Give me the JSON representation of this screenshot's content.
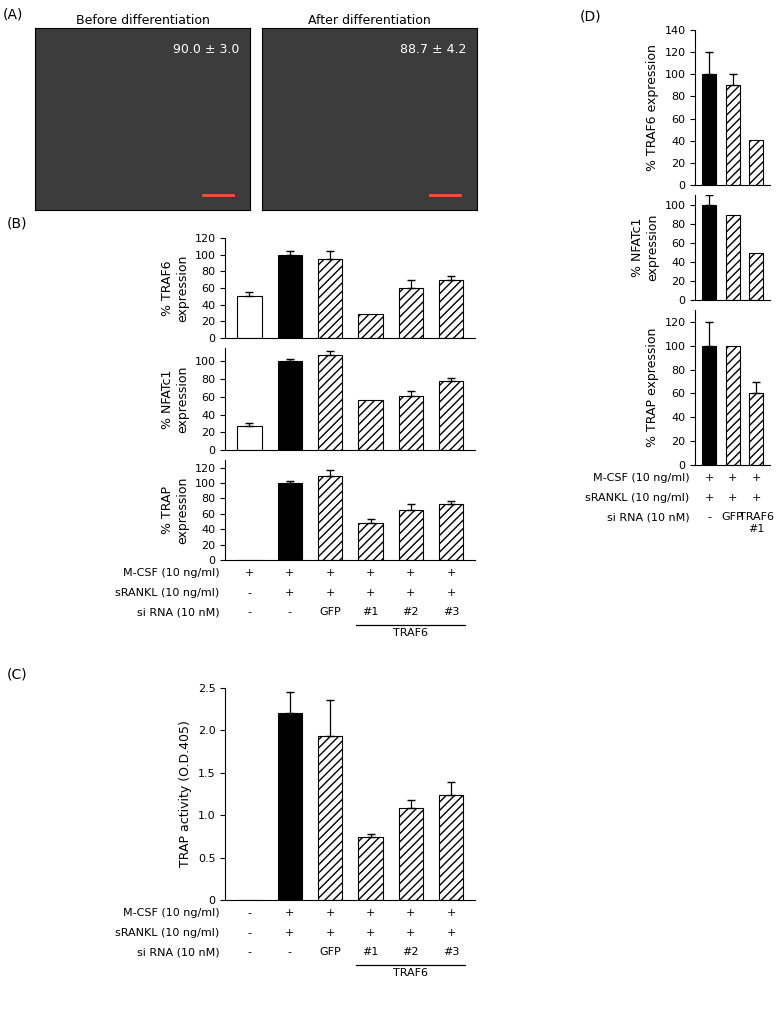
{
  "panel_A": {
    "label": "(A)",
    "images": [
      {
        "title": "Before differentiation",
        "annotation": "90.0 ± 3.0"
      },
      {
        "title": "After differentiation",
        "annotation": "88.7 ± 4.2"
      }
    ]
  },
  "chart_data": [
    {
      "panel": "(B)",
      "type": "bar",
      "y_label": "% TRAF6 expression",
      "categories": [
        null,
        null,
        null,
        null,
        null,
        null
      ],
      "values": [
        50,
        100,
        95,
        29,
        60,
        70
      ],
      "errors": [
        5,
        5,
        10,
        null,
        10,
        5
      ],
      "colors": [
        "#ffffff",
        "#000000",
        "#ffffff",
        "#ffffff",
        "#ffffff",
        "#ffffff"
      ],
      "ylim": [
        0,
        120
      ],
      "yticks": [
        0,
        20,
        40,
        60,
        80,
        100,
        120
      ],
      "tick_labels": "y"
    },
    {
      "type": "bar",
      "y_label": "% NFATc1 expression",
      "categories": [
        null,
        null,
        null,
        null,
        null,
        null
      ],
      "values": [
        27,
        100,
        107,
        56,
        61,
        78
      ],
      "errors": [
        4,
        3,
        5,
        null,
        5,
        3
      ],
      "colors": [
        "#ffffff",
        "#000000",
        "#ffffff",
        "#ffffff",
        "#ffffff",
        "#ffffff"
      ],
      "ylim": [
        0,
        115
      ],
      "yticks": [
        0,
        20,
        40,
        60,
        80,
        100
      ],
      "tick_labels": "y"
    },
    {
      "type": "bar",
      "y_label": "% TRAP expression",
      "categories": [
        null,
        null,
        null,
        null,
        null,
        null
      ],
      "values": [
        0,
        100,
        109,
        48,
        65,
        73
      ],
      "errors": [
        null,
        3,
        8,
        5,
        8,
        4
      ],
      "colors": [
        "#ffffff",
        "#000000",
        "#ffffff",
        "#ffffff",
        "#ffffff",
        "#ffffff"
      ],
      "ylim": [
        0,
        130
      ],
      "yticks": [
        0,
        20,
        40,
        60,
        80,
        100,
        120
      ],
      "tick_labels": "y",
      "condition_rows": [
        {
          "label": "M-CSF (10 ng/ml)",
          "values": [
            "+",
            "+",
            "+",
            "+",
            "+",
            "+"
          ]
        },
        {
          "label": "sRANKL (10 ng/ml)",
          "values": [
            "-",
            "+",
            "+",
            "+",
            "+",
            "+"
          ]
        },
        {
          "label": "si RNA (10 nM)",
          "values": [
            "-",
            "-",
            "GFP",
            "#1",
            "#2",
            "#3"
          ]
        }
      ],
      "group": {
        "label": "TRAF6",
        "members": [
          "#1",
          "#2",
          "#3"
        ]
      }
    },
    {
      "panel": "(C)",
      "type": "bar",
      "y_label": "TRAP activity (O.D.405)",
      "categories": [
        null,
        null,
        null,
        null,
        null,
        null
      ],
      "values": [
        0,
        2.2,
        1.93,
        0.74,
        1.08,
        1.24
      ],
      "errors": [
        null,
        0.25,
        0.43,
        0.04,
        0.1,
        0.15
      ],
      "colors": [
        "#ffffff",
        "#000000",
        "#ffffff",
        "#ffffff",
        "#ffffff",
        "#ffffff"
      ],
      "ylim": [
        0,
        2.5
      ],
      "yticks": [
        0,
        0.5,
        1.0,
        1.5,
        2.0,
        2.5
      ],
      "tick_labels": "y",
      "condition_rows": [
        {
          "label": "M-CSF (10 ng/ml)",
          "values": [
            "-",
            "+",
            "+",
            "+",
            "+",
            "+"
          ]
        },
        {
          "label": "sRANKL (10 ng/ml)",
          "values": [
            "-",
            "+",
            "+",
            "+",
            "+",
            "+"
          ]
        },
        {
          "label": "si RNA (10 nM)",
          "values": [
            "-",
            "-",
            "GFP",
            "#1",
            "#2",
            "#3"
          ]
        }
      ],
      "group": {
        "label": "TRAF6",
        "members": [
          "#1",
          "#2",
          "#3"
        ]
      }
    },
    {
      "panel": "(D)",
      "type": "bar",
      "y_label": "% TRAF6 expression",
      "categories": [
        null,
        null,
        null
      ],
      "values": [
        100,
        90,
        41
      ],
      "errors": [
        20,
        10,
        null
      ],
      "colors": [
        "#000000",
        "#ffffff",
        "#ffffff"
      ],
      "ylim": [
        0,
        140
      ],
      "yticks": [
        0,
        20,
        40,
        60,
        80,
        100,
        120,
        140
      ],
      "tick_labels": "y"
    },
    {
      "type": "bar",
      "y_label": "% NFATc1 expression",
      "categories": [
        null,
        null,
        null
      ],
      "values": [
        100,
        89,
        49
      ],
      "errors": [
        10,
        null,
        null
      ],
      "colors": [
        "#000000",
        "#ffffff",
        "#ffffff"
      ],
      "ylim": [
        0,
        110
      ],
      "yticks": [
        0,
        20,
        40,
        60,
        80,
        100
      ],
      "tick_labels": "y"
    },
    {
      "type": "bar",
      "y_label": "% TRAP expression",
      "categories": [
        null,
        null,
        null
      ],
      "values": [
        100,
        100,
        60
      ],
      "errors": [
        20,
        null,
        10
      ],
      "colors": [
        "#000000",
        "#ffffff",
        "#ffffff"
      ],
      "ylim": [
        0,
        130
      ],
      "yticks": [
        0,
        20,
        40,
        60,
        80,
        100,
        120
      ],
      "tick_labels": "y",
      "condition_rows": [
        {
          "label": "M-CSF (10 ng/ml)",
          "values": [
            "+",
            "+",
            "+"
          ]
        },
        {
          "label": "sRANKL (10 ng/ml)",
          "values": [
            "+",
            "+",
            "+"
          ]
        },
        {
          "label": "si RNA (10 nM)",
          "values": [
            "-",
            "GFP",
            "TRAF6\n#1"
          ]
        }
      ]
    }
  ]
}
